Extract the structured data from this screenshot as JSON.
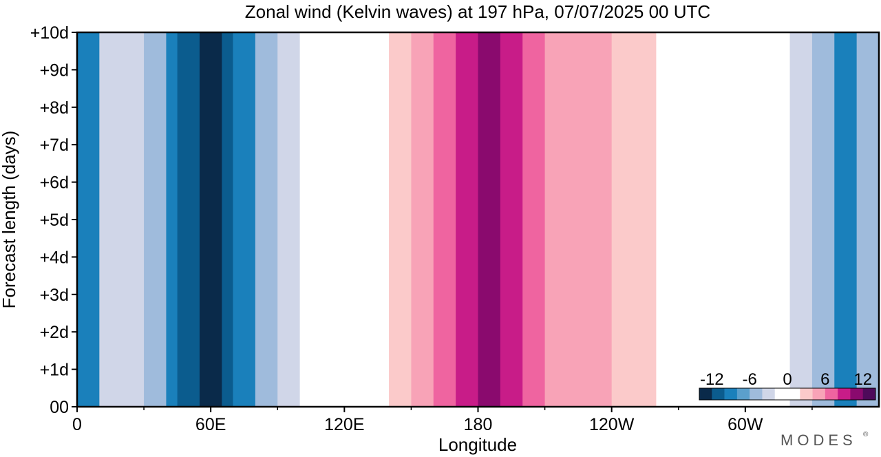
{
  "chart_data": {
    "type": "heatmap",
    "title": "Zonal wind (Kelvin waves) at 197 hPa,  07/07/2025  00 UTC",
    "xlabel": "Longitude",
    "ylabel": "Forecast length (days)",
    "x_ticks": [
      {
        "lon": 0,
        "label": "0"
      },
      {
        "lon": 60,
        "label": "60E"
      },
      {
        "lon": 120,
        "label": "120E"
      },
      {
        "lon": 180,
        "label": "180"
      },
      {
        "lon": 240,
        "label": "120W"
      },
      {
        "lon": 300,
        "label": "60W"
      }
    ],
    "x_minor_ticks": [
      30,
      90,
      150,
      210,
      270,
      330
    ],
    "y_ticks": [
      {
        "day": 0,
        "label": "00"
      },
      {
        "day": 1,
        "label": "+1d"
      },
      {
        "day": 2,
        "label": "+2d"
      },
      {
        "day": 3,
        "label": "+3d"
      },
      {
        "day": 4,
        "label": "+4d"
      },
      {
        "day": 5,
        "label": "+5d"
      },
      {
        "day": 6,
        "label": "+6d"
      },
      {
        "day": 7,
        "label": "+7d"
      },
      {
        "day": 8,
        "label": "+8d"
      },
      {
        "day": 9,
        "label": "+9d"
      },
      {
        "day": 10,
        "label": "+10d"
      }
    ],
    "xlim": [
      0,
      360
    ],
    "ylim": [
      0,
      10
    ],
    "colorbar": {
      "labels": [
        {
          "value": -12,
          "label": "-12"
        },
        {
          "value": -6,
          "label": "-6"
        },
        {
          "value": 0,
          "label": "0"
        },
        {
          "value": 6,
          "label": "6"
        },
        {
          "value": 12,
          "label": "12"
        }
      ],
      "range": [
        -14,
        14
      ],
      "colors": [
        "#0a2a4a",
        "#0b5c8e",
        "#1a80bb",
        "#5b9fcc",
        "#9fbbdc",
        "#d0d6e8",
        "#ffffff",
        "#ffffff",
        "#fbcaca",
        "#f8a3b7",
        "#ef64a0",
        "#c81c88",
        "#8a0a6e",
        "#4e0a5a"
      ]
    },
    "field_bands": [
      {
        "lon": [
          0,
          10
        ],
        "level": -9
      },
      {
        "lon": [
          10,
          30
        ],
        "level": -3
      },
      {
        "lon": [
          30,
          40
        ],
        "level": -6
      },
      {
        "lon": [
          40,
          45
        ],
        "level": -9
      },
      {
        "lon": [
          45,
          55
        ],
        "level": -11
      },
      {
        "lon": [
          55,
          65
        ],
        "level": -13
      },
      {
        "lon": [
          65,
          70
        ],
        "level": -11
      },
      {
        "lon": [
          70,
          80
        ],
        "level": -9
      },
      {
        "lon": [
          80,
          90
        ],
        "level": -6
      },
      {
        "lon": [
          90,
          100
        ],
        "level": -3
      },
      {
        "lon": [
          100,
          140
        ],
        "level": 0
      },
      {
        "lon": [
          140,
          150
        ],
        "level": 2
      },
      {
        "lon": [
          150,
          160
        ],
        "level": 4
      },
      {
        "lon": [
          160,
          170
        ],
        "level": 7
      },
      {
        "lon": [
          170,
          180
        ],
        "level": 9
      },
      {
        "lon": [
          180,
          190
        ],
        "level": 11
      },
      {
        "lon": [
          190,
          200
        ],
        "level": 9
      },
      {
        "lon": [
          200,
          210
        ],
        "level": 7
      },
      {
        "lon": [
          210,
          240
        ],
        "level": 4
      },
      {
        "lon": [
          240,
          260
        ],
        "level": 2
      },
      {
        "lon": [
          260,
          320
        ],
        "level": 0
      },
      {
        "lon": [
          320,
          330
        ],
        "level": -3
      },
      {
        "lon": [
          330,
          340
        ],
        "level": -6
      },
      {
        "lon": [
          340,
          350
        ],
        "level": -9
      },
      {
        "lon": [
          350,
          360
        ],
        "level": -6
      }
    ],
    "grid": false
  },
  "brand": {
    "text": "MODES",
    "mark": "®"
  }
}
